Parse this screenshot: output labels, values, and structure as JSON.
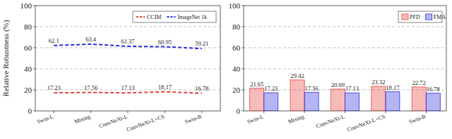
{
  "chart_data": [
    {
      "type": "line",
      "ylabel": "Relative Robustness (%)",
      "categories": [
        "Swin-L",
        "Mixing",
        "ConvNeXt-L",
        "ConvNeXt-L+CS",
        "Swin-B"
      ],
      "series": [
        {
          "name": "CCIM",
          "color": "#e8403a",
          "line_style": "dashed",
          "values": [
            17.23,
            17.56,
            17.13,
            18.17,
            16.78
          ]
        },
        {
          "name": "ImageNet 1k",
          "color": "#2a2ae0",
          "line_style": "dashed",
          "values": [
            62.1,
            63.4,
            61.37,
            60.95,
            59.21
          ]
        }
      ],
      "ylim": [
        0,
        100
      ],
      "yticks": [
        0,
        20,
        40,
        60,
        80,
        100
      ],
      "grid": true,
      "legend": "upper right",
      "data_labels": true
    },
    {
      "type": "bar",
      "categories": [
        "Swin-L",
        "Mixing",
        "ConvNeXt-L",
        "ConvNeXt-L+CS",
        "Swin-B"
      ],
      "series": [
        {
          "name": "PFD",
          "color": "#e8403a",
          "values": [
            21.65,
            29.42,
            20.69,
            23.32,
            22.72
          ]
        },
        {
          "name": "FMA",
          "color": "#2a2ae0",
          "values": [
            17.23,
            17.56,
            17.13,
            18.17,
            16.78
          ]
        }
      ],
      "ylim": [
        0,
        100
      ],
      "yticks": [
        0,
        20,
        40,
        60,
        80,
        100
      ],
      "grid": true,
      "legend": "upper right",
      "data_labels": true
    }
  ]
}
